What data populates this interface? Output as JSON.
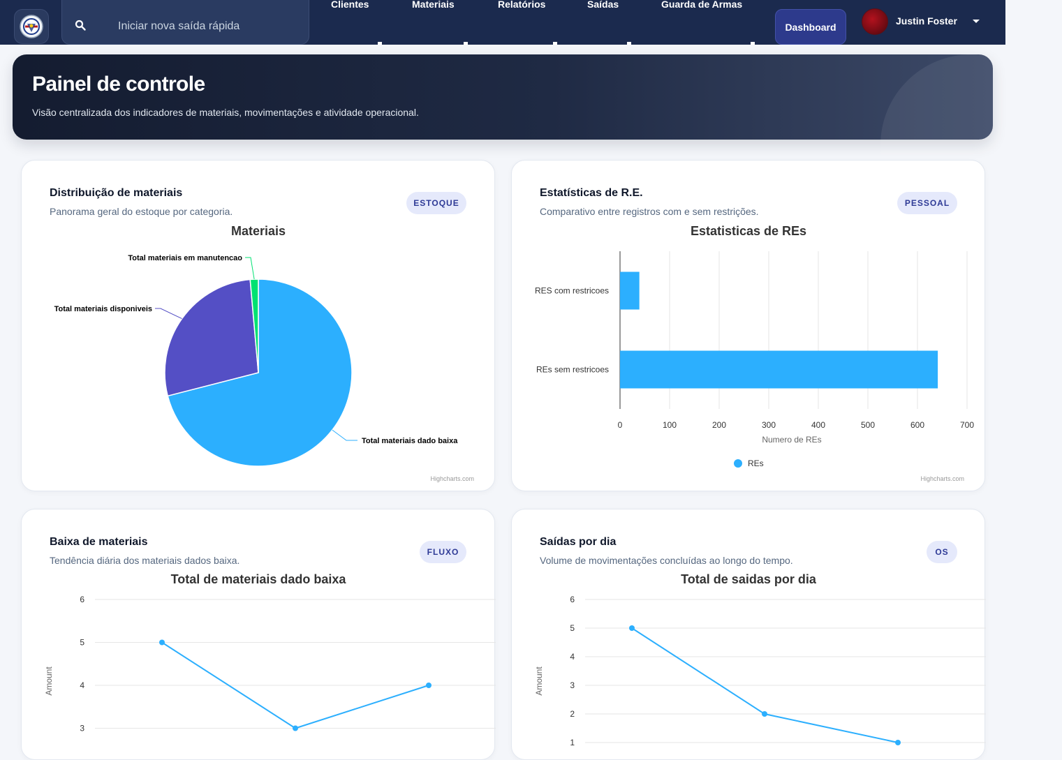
{
  "navbar": {
    "search_placeholder": "Iniciar nova saída rápida",
    "links": [
      "Clientes",
      "Materiais",
      "Relatórios",
      "Saídas",
      "Guarda de Armas"
    ],
    "dashboard_label": "Dashboard",
    "user_name": "Justin Foster"
  },
  "hero": {
    "title": "Painel de controle",
    "subtitle": "Visão centralizada dos indicadores de materiais, movimentações e atividade operacional."
  },
  "cards": [
    {
      "title": "Distribuição de materiais",
      "subtitle": "Panorama geral do estoque por categoria.",
      "badge": "ESTOQUE"
    },
    {
      "title": "Estatísticas de R.E.",
      "subtitle": "Comparativo entre registros com e sem restrições.",
      "badge": "PESSOAL"
    },
    {
      "title": "Baixa de materiais",
      "subtitle": "Tendência diária dos materiais dados baixa.",
      "badge": "FLUXO"
    },
    {
      "title": "Saídas por dia",
      "subtitle": "Volume de movimentações concluídas ao longo do tempo.",
      "badge": "OS"
    }
  ],
  "credits": "Highcharts.com",
  "colors": {
    "accent": "#2caffe",
    "purple": "#544fc5",
    "green": "#00e272",
    "nav": "#1b2a4e"
  },
  "chart_data": [
    {
      "type": "pie",
      "title": "Materiais",
      "slices": [
        {
          "name": "Total materiais dado baixa",
          "value": 71.0,
          "color": "#2caffe"
        },
        {
          "name": "Total materiais disponiveis",
          "value": 27.6,
          "color": "#544fc5"
        },
        {
          "name": "Total materiais em manutencao",
          "value": 1.4,
          "color": "#00e272"
        }
      ]
    },
    {
      "type": "bar",
      "title": "Estatisticas de REs",
      "categories": [
        "RES com restricoes",
        "REs sem restricoes"
      ],
      "series": [
        {
          "name": "REs",
          "values": [
            39,
            641
          ]
        }
      ],
      "xlabel": "Numero de REs",
      "xlim": [
        0,
        700
      ],
      "ticks": [
        0,
        100,
        200,
        300,
        400,
        500,
        600,
        700
      ],
      "legend": "bottom-center",
      "grid": true
    },
    {
      "type": "line",
      "title": "Total de materiais dado baixa",
      "ylabel": "Amount",
      "values": [
        5,
        3,
        4
      ],
      "ylim": [
        3,
        6
      ],
      "yticks": [
        3,
        4,
        5,
        6
      ],
      "grid": true
    },
    {
      "type": "line",
      "title": "Total de saidas por dia",
      "ylabel": "Amount",
      "values": [
        5,
        2,
        1
      ],
      "ylim": [
        1,
        6
      ],
      "yticks": [
        1,
        2,
        3,
        4,
        5,
        6
      ],
      "grid": true
    }
  ]
}
